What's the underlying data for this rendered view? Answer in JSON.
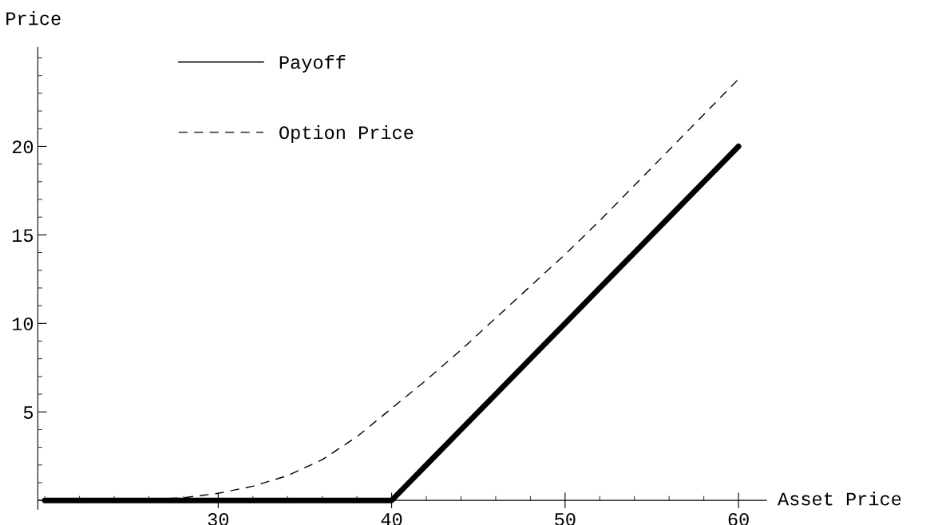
{
  "chart_data": {
    "type": "line",
    "xlabel": "Asset Price",
    "ylabel": "Price",
    "x": [
      20,
      22,
      24,
      26,
      28,
      30,
      32,
      34,
      36,
      38,
      40,
      42,
      44,
      46,
      48,
      50,
      52,
      54,
      56,
      58,
      60
    ],
    "series": [
      {
        "name": "Payoff",
        "color": "#000000",
        "line_style": "solid",
        "values": [
          0,
          0,
          0,
          0,
          0,
          0,
          0,
          0,
          0,
          0,
          0,
          2,
          4,
          6,
          8,
          10,
          12,
          14,
          16,
          18,
          20
        ]
      },
      {
        "name": "Option Price",
        "color": "#000000",
        "line_style": "dashed",
        "values": [
          0,
          0,
          0.01,
          0.05,
          0.15,
          0.4,
          0.8,
          1.4,
          2.3,
          3.6,
          5.2,
          6.8,
          8.5,
          10.3,
          12.1,
          13.9,
          15.8,
          17.8,
          19.8,
          21.8,
          23.8
        ]
      }
    ],
    "xlim": [
      19.6,
      61.6
    ],
    "ylim": [
      -0.5,
      25.6
    ],
    "xticks": [
      30,
      40,
      50,
      60
    ],
    "yticks": [
      5,
      10,
      15,
      20
    ],
    "grid": false,
    "legend": "top left"
  }
}
